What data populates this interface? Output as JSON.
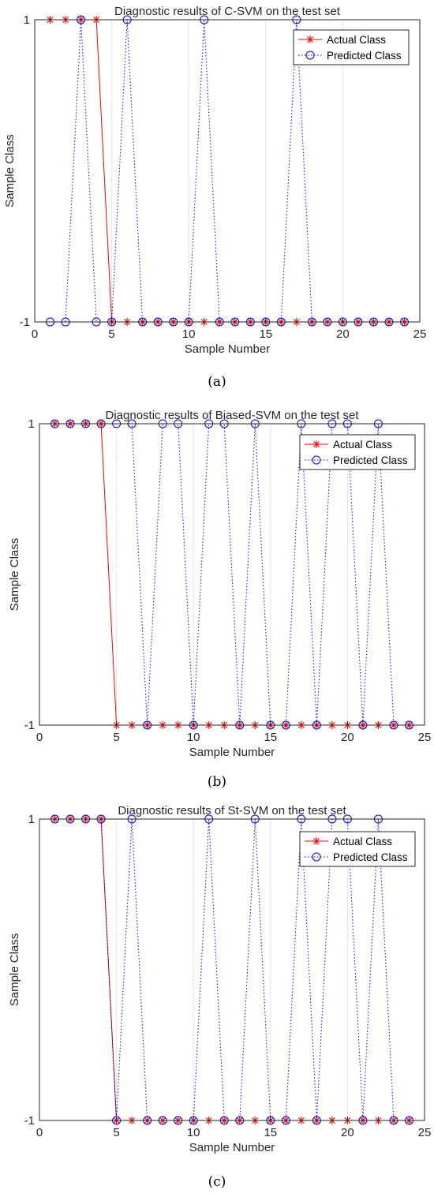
{
  "colors": {
    "actual": "#ff0000",
    "predicted": "#0000ff",
    "grid": "#e3e3e3",
    "axis": "#262626"
  },
  "chart_data": [
    {
      "type": "line",
      "title": "Diagnostic results of C-SVM on the test set",
      "xlabel": "Sample Number",
      "ylabel": "Sample Class",
      "xlim": [
        0,
        25
      ],
      "ylim": [
        -1,
        1
      ],
      "xticks": [
        0,
        5,
        10,
        15,
        20,
        25
      ],
      "yticks": [
        -1,
        1
      ],
      "grid": "vertical",
      "legend_position": "top-right",
      "caption": "(a)",
      "x": [
        1,
        2,
        3,
        4,
        5,
        6,
        7,
        8,
        9,
        10,
        11,
        12,
        13,
        14,
        15,
        16,
        17,
        18,
        19,
        20,
        21,
        22,
        23,
        24
      ],
      "series": [
        {
          "name": "Actual Class",
          "marker": "asterisk",
          "line": "solid",
          "values": [
            1,
            1,
            1,
            1,
            -1,
            -1,
            -1,
            -1,
            -1,
            -1,
            -1,
            -1,
            -1,
            -1,
            -1,
            -1,
            -1,
            -1,
            -1,
            -1,
            -1,
            -1,
            -1,
            -1
          ]
        },
        {
          "name": "Predicted Class",
          "marker": "circle",
          "line": "dotted",
          "values": [
            -1,
            -1,
            1,
            -1,
            -1,
            1,
            -1,
            -1,
            -1,
            -1,
            1,
            -1,
            -1,
            -1,
            -1,
            -1,
            1,
            -1,
            -1,
            -1,
            -1,
            -1,
            -1,
            -1
          ]
        }
      ]
    },
    {
      "type": "line",
      "title": "Diagnostic results of Biased-SVM on the test set",
      "xlabel": "Sample Number",
      "ylabel": "Sample Class",
      "xlim": [
        0,
        25
      ],
      "ylim": [
        -1,
        1
      ],
      "xticks": [
        0,
        5,
        10,
        15,
        20,
        25
      ],
      "yticks": [
        -1,
        1
      ],
      "grid": "vertical",
      "legend_position": "top-right",
      "caption": "(b)",
      "x": [
        1,
        2,
        3,
        4,
        5,
        6,
        7,
        8,
        9,
        10,
        11,
        12,
        13,
        14,
        15,
        16,
        17,
        18,
        19,
        20,
        21,
        22,
        23,
        24
      ],
      "series": [
        {
          "name": "Actual Class",
          "marker": "asterisk",
          "line": "solid",
          "values": [
            1,
            1,
            1,
            1,
            -1,
            -1,
            -1,
            -1,
            -1,
            -1,
            -1,
            -1,
            -1,
            -1,
            -1,
            -1,
            -1,
            -1,
            -1,
            -1,
            -1,
            -1,
            -1,
            -1
          ]
        },
        {
          "name": "Predicted Class",
          "marker": "circle",
          "line": "dotted",
          "values": [
            1,
            1,
            1,
            1,
            1,
            1,
            -1,
            1,
            1,
            -1,
            1,
            1,
            -1,
            1,
            -1,
            -1,
            1,
            -1,
            1,
            1,
            -1,
            1,
            -1,
            -1
          ]
        }
      ]
    },
    {
      "type": "line",
      "title": "Diagnostic results of St-SVM on the test set",
      "xlabel": "Sample Number",
      "ylabel": "Sample Class",
      "xlim": [
        0,
        25
      ],
      "ylim": [
        -1,
        1
      ],
      "xticks": [
        0,
        5,
        10,
        15,
        20,
        25
      ],
      "yticks": [
        -1,
        1
      ],
      "grid": "vertical",
      "legend_position": "top-right",
      "caption": "(c)",
      "x": [
        1,
        2,
        3,
        4,
        5,
        6,
        7,
        8,
        9,
        10,
        11,
        12,
        13,
        14,
        15,
        16,
        17,
        18,
        19,
        20,
        21,
        22,
        23,
        24
      ],
      "series": [
        {
          "name": "Actual Class",
          "marker": "asterisk",
          "line": "solid",
          "values": [
            1,
            1,
            1,
            1,
            -1,
            -1,
            -1,
            -1,
            -1,
            -1,
            -1,
            -1,
            -1,
            -1,
            -1,
            -1,
            -1,
            -1,
            -1,
            -1,
            -1,
            -1,
            -1,
            -1
          ]
        },
        {
          "name": "Predicted Class",
          "marker": "circle",
          "line": "dotted",
          "values": [
            1,
            1,
            1,
            1,
            -1,
            1,
            -1,
            -1,
            -1,
            -1,
            1,
            -1,
            -1,
            1,
            -1,
            -1,
            1,
            -1,
            1,
            1,
            -1,
            1,
            -1,
            -1
          ]
        }
      ]
    }
  ]
}
